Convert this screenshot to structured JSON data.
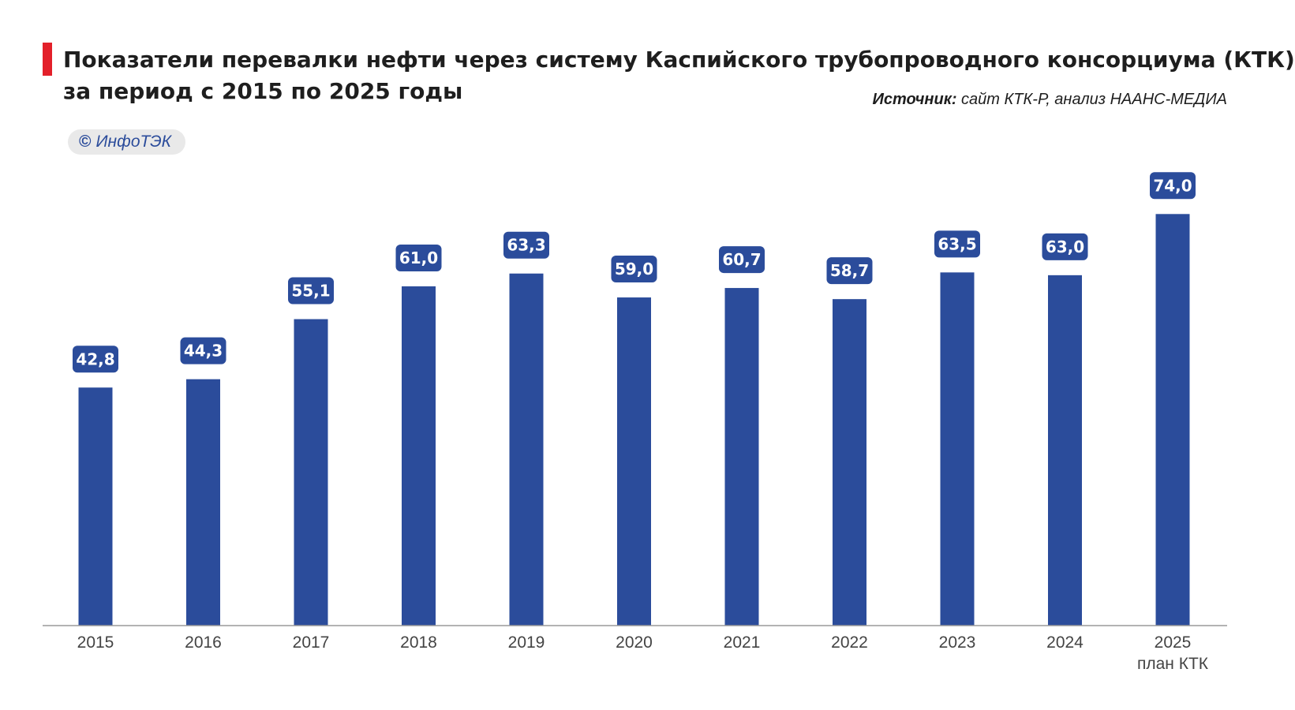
{
  "header": {
    "title_line1": "Показатели перевалки нефти через систему Каспийского трубопроводного консорциума (КТК)",
    "title_line2": "за период с 2015 по 2025 годы",
    "source_label": "Источник:",
    "source_text": " сайт КТК-Р, анализ НААНС-МЕДИА",
    "watermark_symbol": "©",
    "watermark_text": "ИнфоТЭК"
  },
  "colors": {
    "bar": "#2b4c9b",
    "label_bg": "#2b4c9b",
    "label_text": "#ffffff",
    "accent": "#e3202a",
    "axis": "#9a9a9a",
    "tick_text": "#444444"
  },
  "chart_data": {
    "type": "bar",
    "title": "Показатели перевалки нефти через систему Каспийского трубопроводного консорциума (КТК) за период с 2015 по 2025 годы",
    "categories": [
      "2015",
      "2016",
      "2017",
      "2018",
      "2019",
      "2020",
      "2021",
      "2022",
      "2023",
      "2024",
      "2025"
    ],
    "category_sublabels": [
      "",
      "",
      "",
      "",
      "",
      "",
      "",
      "",
      "",
      "",
      "план КТК"
    ],
    "values": [
      42.8,
      44.3,
      55.1,
      61.0,
      63.3,
      59.0,
      60.7,
      58.7,
      63.5,
      63.0,
      74.0
    ],
    "data_labels": [
      "42,8",
      "44,3",
      "55,1",
      "61,0",
      "63,3",
      "59,0",
      "60,7",
      "58,7",
      "63,5",
      "63,0",
      "74,0"
    ],
    "xlabel": "",
    "ylabel": "",
    "ylim": [
      0,
      80
    ],
    "grid": false,
    "legend": "none"
  }
}
